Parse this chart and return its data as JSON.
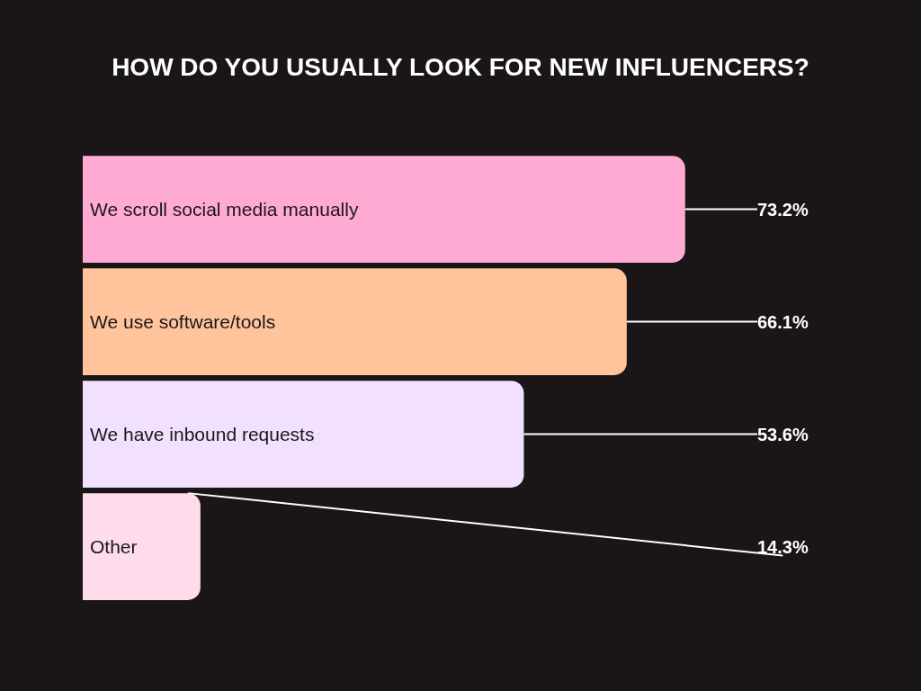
{
  "chart_data": {
    "type": "bar",
    "orientation": "horizontal",
    "title": "HOW DO YOU USUALLY LOOK FOR NEW INFLUENCERS?",
    "categories": [
      "We scroll social media manually",
      "We use software/tools",
      "We have inbound requests",
      "Other"
    ],
    "values": [
      73.2,
      66.1,
      53.6,
      14.3
    ],
    "colors": [
      "#ffaad3",
      "#ffc49b",
      "#f2e0ff",
      "#ffdcec"
    ],
    "value_labels": [
      "73.2%",
      "66.1%",
      "53.6%",
      "14.3%"
    ],
    "tick_labels": "y"
  }
}
